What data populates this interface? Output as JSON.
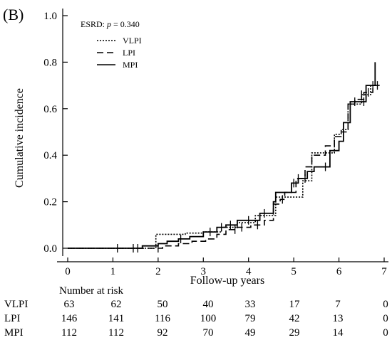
{
  "chart_data": {
    "type": "line",
    "panel_label": "(B)",
    "xlabel": "Follow-up years",
    "ylabel": "Cumulative incidence",
    "xlim": [
      0,
      7
    ],
    "ylim": [
      0,
      1.0
    ],
    "x_ticks": [
      "0",
      "1",
      "2",
      "3",
      "4",
      "5",
      "6",
      "7"
    ],
    "y_ticks": [
      "0.0",
      "0.2",
      "0.4",
      "0.6",
      "0.8",
      "1.0"
    ],
    "grid": false,
    "legend_position": "top-left",
    "legend": {
      "title_prefix": "ESRD: ",
      "title_p": "p",
      "title_value": " = 0.340"
    },
    "series": [
      {
        "name": "VLPI",
        "dash": "dotted",
        "points": [
          [
            0,
            0
          ],
          [
            1.95,
            0
          ],
          [
            1.95,
            0.06
          ],
          [
            2.6,
            0.06
          ],
          [
            2.6,
            0.065
          ],
          [
            3.0,
            0.065
          ],
          [
            3.0,
            0.07
          ],
          [
            3.4,
            0.07
          ],
          [
            3.4,
            0.09
          ],
          [
            3.75,
            0.09
          ],
          [
            3.75,
            0.11
          ],
          [
            4.15,
            0.11
          ],
          [
            4.15,
            0.14
          ],
          [
            4.6,
            0.14
          ],
          [
            4.6,
            0.22
          ],
          [
            5.2,
            0.22
          ],
          [
            5.2,
            0.29
          ],
          [
            5.4,
            0.29
          ],
          [
            5.4,
            0.41
          ],
          [
            5.9,
            0.41
          ],
          [
            5.9,
            0.49
          ],
          [
            6.05,
            0.49
          ],
          [
            6.05,
            0.51
          ],
          [
            6.2,
            0.51
          ],
          [
            6.2,
            0.62
          ],
          [
            6.5,
            0.62
          ],
          [
            6.5,
            0.66
          ],
          [
            6.7,
            0.66
          ],
          [
            6.7,
            0.7
          ],
          [
            6.85,
            0.7
          ]
        ],
        "censor_x": [
          6.5,
          6.75
        ]
      },
      {
        "name": "LPI",
        "dash": "dashed",
        "points": [
          [
            0,
            0
          ],
          [
            2.1,
            0
          ],
          [
            2.1,
            0.01
          ],
          [
            2.45,
            0.01
          ],
          [
            2.45,
            0.02
          ],
          [
            2.75,
            0.02
          ],
          [
            2.75,
            0.03
          ],
          [
            3.05,
            0.03
          ],
          [
            3.05,
            0.04
          ],
          [
            3.3,
            0.04
          ],
          [
            3.3,
            0.06
          ],
          [
            3.5,
            0.06
          ],
          [
            3.5,
            0.08
          ],
          [
            3.75,
            0.08
          ],
          [
            3.75,
            0.09
          ],
          [
            4.05,
            0.09
          ],
          [
            4.05,
            0.1
          ],
          [
            4.35,
            0.1
          ],
          [
            4.35,
            0.12
          ],
          [
            4.55,
            0.12
          ],
          [
            4.55,
            0.19
          ],
          [
            4.7,
            0.19
          ],
          [
            4.7,
            0.21
          ],
          [
            4.8,
            0.21
          ],
          [
            4.8,
            0.24
          ],
          [
            5.05,
            0.24
          ],
          [
            5.05,
            0.3
          ],
          [
            5.25,
            0.3
          ],
          [
            5.25,
            0.35
          ],
          [
            5.4,
            0.35
          ],
          [
            5.4,
            0.4
          ],
          [
            5.7,
            0.4
          ],
          [
            5.7,
            0.44
          ],
          [
            5.9,
            0.44
          ],
          [
            5.9,
            0.48
          ],
          [
            6.05,
            0.48
          ],
          [
            6.05,
            0.5
          ],
          [
            6.2,
            0.5
          ],
          [
            6.2,
            0.62
          ],
          [
            6.35,
            0.62
          ],
          [
            6.35,
            0.64
          ],
          [
            6.55,
            0.64
          ],
          [
            6.55,
            0.67
          ],
          [
            6.75,
            0.67
          ],
          [
            6.75,
            0.7
          ],
          [
            6.9,
            0.7
          ]
        ],
        "censor_x": [
          1.55,
          2.0,
          3.7,
          3.85,
          4.2,
          4.75,
          5.1,
          6.65,
          6.85
        ]
      },
      {
        "name": "MPI",
        "dash": "solid",
        "points": [
          [
            0,
            0
          ],
          [
            1.65,
            0
          ],
          [
            1.65,
            0.01
          ],
          [
            2.0,
            0.01
          ],
          [
            2.0,
            0.02
          ],
          [
            2.2,
            0.02
          ],
          [
            2.2,
            0.03
          ],
          [
            2.45,
            0.03
          ],
          [
            2.45,
            0.04
          ],
          [
            2.7,
            0.04
          ],
          [
            2.7,
            0.05
          ],
          [
            3.0,
            0.05
          ],
          [
            3.0,
            0.07
          ],
          [
            3.3,
            0.07
          ],
          [
            3.3,
            0.09
          ],
          [
            3.5,
            0.09
          ],
          [
            3.5,
            0.1
          ],
          [
            3.75,
            0.1
          ],
          [
            3.75,
            0.12
          ],
          [
            4.25,
            0.12
          ],
          [
            4.25,
            0.15
          ],
          [
            4.55,
            0.15
          ],
          [
            4.55,
            0.2
          ],
          [
            4.6,
            0.2
          ],
          [
            4.6,
            0.24
          ],
          [
            4.95,
            0.24
          ],
          [
            4.95,
            0.28
          ],
          [
            5.1,
            0.28
          ],
          [
            5.1,
            0.3
          ],
          [
            5.3,
            0.3
          ],
          [
            5.3,
            0.33
          ],
          [
            5.45,
            0.33
          ],
          [
            5.45,
            0.35
          ],
          [
            5.8,
            0.35
          ],
          [
            5.8,
            0.42
          ],
          [
            6.0,
            0.42
          ],
          [
            6.0,
            0.46
          ],
          [
            6.1,
            0.46
          ],
          [
            6.1,
            0.54
          ],
          [
            6.25,
            0.54
          ],
          [
            6.25,
            0.63
          ],
          [
            6.6,
            0.63
          ],
          [
            6.6,
            0.7
          ],
          [
            6.8,
            0.7
          ],
          [
            6.8,
            0.8
          ]
        ],
        "censor_x": [
          1.1,
          1.45,
          2.5,
          3.15,
          3.4,
          3.6,
          4.0,
          4.35,
          5.0,
          5.25,
          5.7,
          6.35,
          6.55
        ]
      }
    ],
    "risk_table": {
      "title": "Number at risk",
      "rows": [
        {
          "label": "VLPI",
          "values": [
            "63",
            "62",
            "50",
            "40",
            "33",
            "17",
            "7",
            "0"
          ]
        },
        {
          "label": "LPI",
          "values": [
            "146",
            "141",
            "116",
            "100",
            "79",
            "42",
            "13",
            "0"
          ]
        },
        {
          "label": "MPI",
          "values": [
            "112",
            "112",
            "92",
            "70",
            "49",
            "29",
            "14",
            "0"
          ]
        }
      ]
    }
  }
}
